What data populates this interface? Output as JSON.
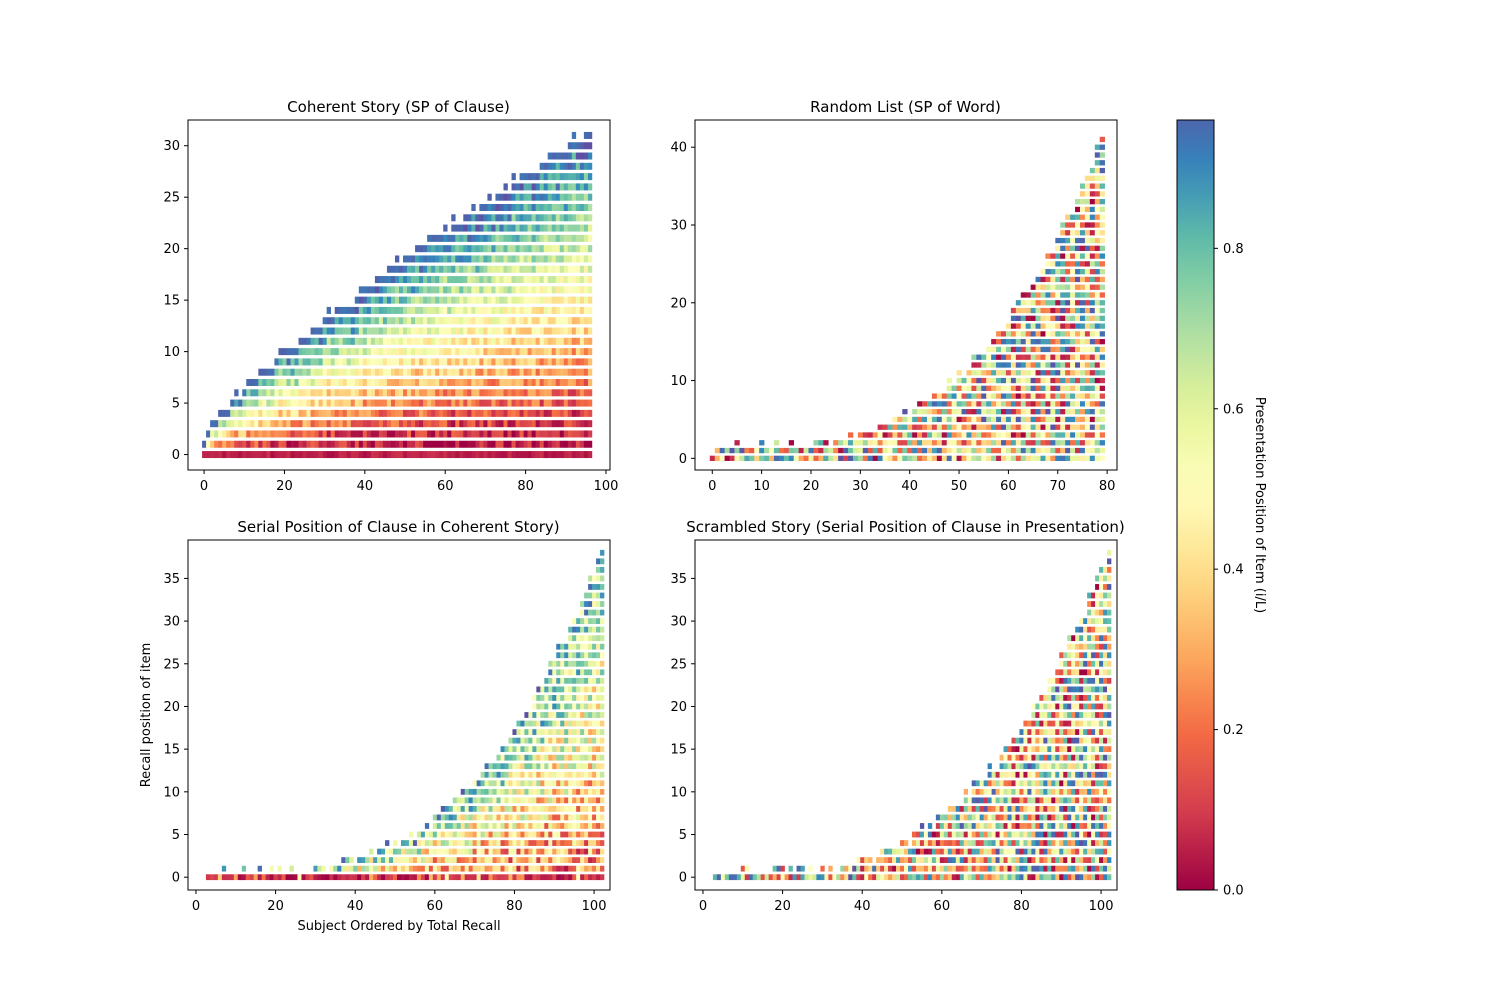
{
  "chart_data": [
    {
      "type": "heatmap",
      "title": "Coherent Story (SP of Clause)",
      "xlabel": "",
      "ylabel": "",
      "xlim": [
        -4,
        101
      ],
      "ylim": [
        -1.5,
        32.5
      ],
      "x_ticks": [
        0,
        20,
        40,
        60,
        80,
        100
      ],
      "y_ticks": [
        0,
        5,
        10,
        15,
        20,
        25,
        30
      ],
      "n_subjects": 97,
      "recall_length_range": [
        2,
        32
      ],
      "mode": "coherent",
      "colormap": "Spectral",
      "color_range": [
        0,
        1
      ],
      "value_description": "Presentation position of recalled clause increases with recall position; first recalled items near 0, last near 1",
      "seed": 11
    },
    {
      "type": "heatmap",
      "title": "Random List (SP of Word)",
      "xlabel": "",
      "ylabel": "",
      "xlim": [
        -3.5,
        82
      ],
      "ylim": [
        -1.5,
        43.5
      ],
      "x_ticks": [
        0,
        10,
        20,
        30,
        40,
        50,
        60,
        70,
        80
      ],
      "y_ticks": [
        0,
        10,
        20,
        30,
        40
      ],
      "n_subjects": 80,
      "recall_length_range": [
        2,
        42
      ],
      "mode": "random",
      "colormap": "Spectral",
      "color_range": [
        0,
        1
      ],
      "value_description": "Presentation positions scattered uniformly across recall positions",
      "seed": 23
    },
    {
      "type": "heatmap",
      "title": "Serial Position of Clause in Coherent Story)",
      "xlabel": "Subject Ordered by Total Recall",
      "ylabel": "Recall position of item",
      "xlim": [
        -2,
        104
      ],
      "ylim": [
        -1.5,
        39.5
      ],
      "x_ticks": [
        0,
        20,
        40,
        60,
        80,
        100
      ],
      "y_ticks": [
        0,
        5,
        10,
        15,
        20,
        25,
        30,
        35
      ],
      "n_subjects": 100,
      "x_start": 3,
      "recall_length_range": [
        1,
        39
      ],
      "mode": "scrambled_coherent",
      "colormap": "Spectral",
      "color_range": [
        0,
        1
      ],
      "value_description": "Weak ordering: early recall slightly lower positions, mixed overall",
      "seed": 37
    },
    {
      "type": "heatmap",
      "title": "Scrambled Story (Serial Position of Clause in Presentation)",
      "xlabel": "",
      "ylabel": "",
      "xlim": [
        -2,
        104
      ],
      "ylim": [
        -1.5,
        39.5
      ],
      "x_ticks": [
        0,
        20,
        40,
        60,
        80,
        100
      ],
      "y_ticks": [
        0,
        5,
        10,
        15,
        20,
        25,
        30,
        35
      ],
      "n_subjects": 100,
      "x_start": 3,
      "recall_length_range": [
        1,
        39
      ],
      "mode": "random",
      "colormap": "Spectral",
      "color_range": [
        0,
        1
      ],
      "value_description": "Presentation positions scattered uniformly",
      "seed": 53
    }
  ],
  "colorbar": {
    "label": "Presentation Position of Item (i/L)",
    "range": [
      0,
      0.96
    ],
    "ticks": [
      0.0,
      0.2,
      0.4,
      0.6,
      0.8
    ]
  },
  "colors": {
    "spectral": [
      "#9e0142",
      "#d53e4f",
      "#f46d43",
      "#fdae61",
      "#fee08b",
      "#ffffbf",
      "#e6f598",
      "#abdda4",
      "#66c2a5",
      "#3288bd",
      "#5e4fa2"
    ]
  }
}
